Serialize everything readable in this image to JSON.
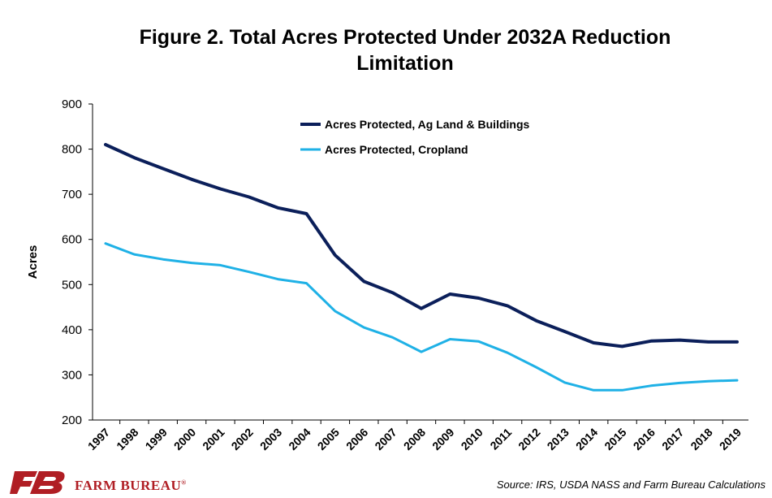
{
  "title_lines": [
    "Figure 2. Total Acres Protected Under 2032A Reduction",
    "Limitation"
  ],
  "source": "Source: IRS, USDA NASS and Farm Bureau Calculations",
  "logo": {
    "text": "FARM BUREAU",
    "mark": "®"
  },
  "colors": {
    "series_dark": "#0b1f5a",
    "series_light": "#1fb1e6",
    "axis": "#000000"
  },
  "chart_data": {
    "type": "line",
    "title": "Figure 2. Total Acres Protected Under 2032A Reduction Limitation",
    "ylabel": "Acres",
    "xlabel": "",
    "ylim": [
      200,
      900
    ],
    "yticks": [
      200,
      300,
      400,
      500,
      600,
      700,
      800,
      900
    ],
    "grid": false,
    "legend_position": "top-center",
    "categories": [
      "1997",
      "1998",
      "1999",
      "2000",
      "2001",
      "2002",
      "2003",
      "2004",
      "2005",
      "2006",
      "2007",
      "2008",
      "2009",
      "2010",
      "2011",
      "2012",
      "2013",
      "2014",
      "2015",
      "2016",
      "2017",
      "2018",
      "2019"
    ],
    "series": [
      {
        "name": "Acres Protected, Ag Land & Buildings",
        "color": "#0b1f5a",
        "values": [
          810,
          781,
          757,
          733,
          712,
          694,
          670,
          657,
          565,
          507,
          482,
          447,
          479,
          470,
          453,
          420,
          396,
          371,
          363,
          375,
          377,
          373,
          373
        ]
      },
      {
        "name": "Acres Protected, Cropland",
        "color": "#1fb1e6",
        "values": [
          591,
          567,
          556,
          548,
          543,
          528,
          512,
          503,
          441,
          405,
          383,
          351,
          379,
          374,
          349,
          317,
          283,
          266,
          266,
          276,
          282,
          286,
          288
        ]
      }
    ]
  }
}
